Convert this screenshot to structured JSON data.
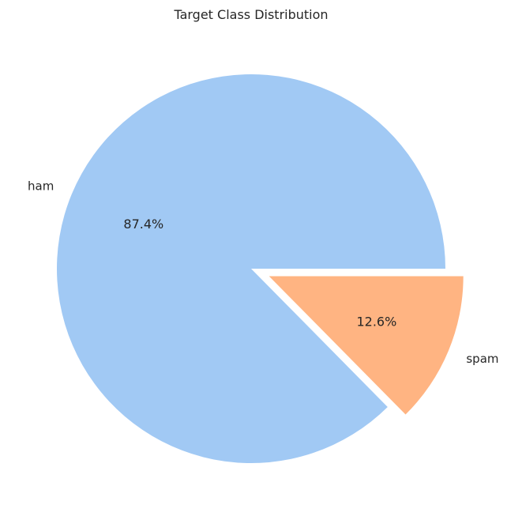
{
  "chart_data": {
    "type": "pie",
    "title": "Target Class Distribution",
    "categories": [
      "ham",
      "spam"
    ],
    "values": [
      87.4,
      12.6
    ],
    "labels": [
      "87.4%",
      "12.6%"
    ],
    "colors": [
      "#a1c9f4",
      "#ffb482"
    ],
    "explode": [
      0,
      0.1
    ],
    "start_angle_deg": 0,
    "direction": "counterclockwise"
  }
}
